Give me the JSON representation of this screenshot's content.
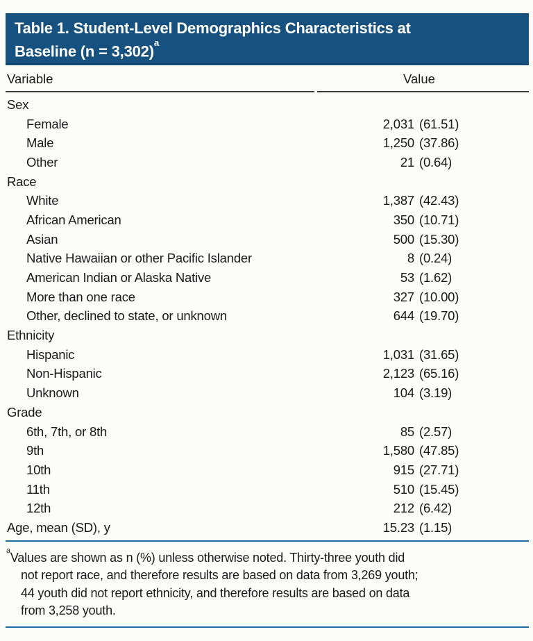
{
  "colors": {
    "banner_bg": "#17517f",
    "banner_text": "#ffffff",
    "page_bg": "#fcfdfa",
    "text": "#1a1a1a",
    "header_rule": "#3b3b3b",
    "blue_rule": "#1d6ba3"
  },
  "table": {
    "title_line1": "Table 1. Student-Level Demographics Characteristics at",
    "title_line2": "Baseline (n = 3,302)",
    "footnote_marker": "a",
    "columns": {
      "variable": "Variable",
      "value": "Value"
    },
    "rows": [
      {
        "label": "Sex",
        "indent": false,
        "n": "",
        "pct": ""
      },
      {
        "label": "Female",
        "indent": true,
        "n": "2,031",
        "pct": "(61.51)"
      },
      {
        "label": "Male",
        "indent": true,
        "n": "1,250",
        "pct": "(37.86)"
      },
      {
        "label": "Other",
        "indent": true,
        "n": "21",
        "pct": "(0.64)"
      },
      {
        "label": "Race",
        "indent": false,
        "n": "",
        "pct": ""
      },
      {
        "label": "White",
        "indent": true,
        "n": "1,387",
        "pct": "(42.43)"
      },
      {
        "label": "African American",
        "indent": true,
        "n": "350",
        "pct": "(10.71)"
      },
      {
        "label": "Asian",
        "indent": true,
        "n": "500",
        "pct": "(15.30)"
      },
      {
        "label": "Native Hawaiian or other Pacific Islander",
        "indent": true,
        "n": "8",
        "pct": "(0.24)"
      },
      {
        "label": "American Indian or Alaska Native",
        "indent": true,
        "n": "53",
        "pct": "(1.62)"
      },
      {
        "label": "More than one race",
        "indent": true,
        "n": "327",
        "pct": "(10.00)"
      },
      {
        "label": "Other, declined to state, or unknown",
        "indent": true,
        "n": "644",
        "pct": "(19.70)"
      },
      {
        "label": "Ethnicity",
        "indent": false,
        "n": "",
        "pct": ""
      },
      {
        "label": "Hispanic",
        "indent": true,
        "n": "1,031",
        "pct": "(31.65)"
      },
      {
        "label": "Non-Hispanic",
        "indent": true,
        "n": "2,123",
        "pct": "(65.16)"
      },
      {
        "label": "Unknown",
        "indent": true,
        "n": "104",
        "pct": "(3.19)"
      },
      {
        "label": "Grade",
        "indent": false,
        "n": "",
        "pct": ""
      },
      {
        "label": "6th, 7th, or 8th",
        "indent": true,
        "n": "85",
        "pct": "(2.57)"
      },
      {
        "label": "9th",
        "indent": true,
        "n": "1,580",
        "pct": "(47.85)"
      },
      {
        "label": "10th",
        "indent": true,
        "n": "915",
        "pct": "(27.71)"
      },
      {
        "label": "11th",
        "indent": true,
        "n": "510",
        "pct": "(15.45)"
      },
      {
        "label": "12th",
        "indent": true,
        "n": "212",
        "pct": "(6.42)"
      },
      {
        "label": "Age, mean (SD), y",
        "indent": false,
        "n": "15.23",
        "pct": "(1.15)"
      }
    ]
  },
  "footnote": {
    "marker": "a",
    "lines": [
      "Values are shown as n (%) unless otherwise noted. Thirty-three youth did",
      "not report race, and therefore results are based on data from 3,269 youth;",
      "44 youth did not report ethnicity, and therefore results are based on data",
      "from 3,258 youth."
    ]
  }
}
